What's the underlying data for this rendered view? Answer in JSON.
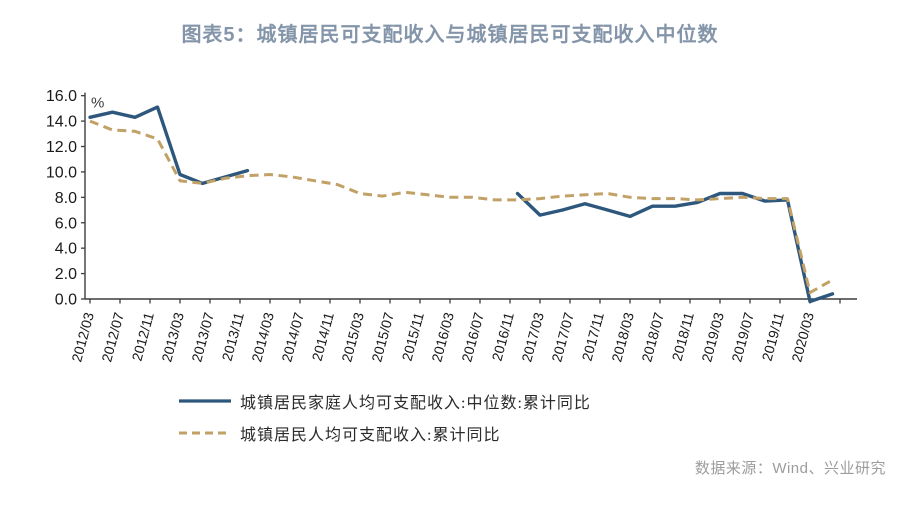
{
  "chart_data": {
    "type": "line",
    "title": "图表5：城镇居民可支配收入与城镇居民可支配收入中位数",
    "title_color": "#8495aa",
    "unit_label": "%",
    "ylim": [
      0,
      16
    ],
    "ytick_step": 2,
    "grid": false,
    "legend_position": "bottom-left",
    "x_labels": [
      "2012/03",
      "2012/07",
      "2012/11",
      "2013/03",
      "2013/07",
      "2013/11",
      "2014/03",
      "2014/07",
      "2014/11",
      "2015/03",
      "2015/07",
      "2015/11",
      "2016/03",
      "2016/07",
      "2016/11",
      "2017/03",
      "2017/07",
      "2017/11",
      "2018/03",
      "2018/07",
      "2018/11",
      "2019/03",
      "2019/07",
      "2019/11",
      "2020/03"
    ],
    "series": [
      {
        "key": "median-income",
        "name": "城镇居民家庭人均可支配收入:中位数:累计同比",
        "color": "#2d577c",
        "line_style": "solid",
        "segments": [
          [
            [
              "2012/03",
              14.3
            ],
            [
              "2012/06",
              14.7
            ],
            [
              "2012/09",
              14.3
            ],
            [
              "2012/12",
              15.1
            ],
            [
              "2013/03",
              9.8
            ],
            [
              "2013/06",
              9.1
            ],
            [
              "2013/09",
              9.6
            ],
            [
              "2013/12",
              10.1
            ]
          ],
          [
            [
              "2016/12",
              8.3
            ],
            [
              "2017/03",
              6.6
            ],
            [
              "2017/06",
              7.0
            ],
            [
              "2017/09",
              7.5
            ],
            [
              "2017/12",
              7.0
            ],
            [
              "2018/03",
              6.5
            ],
            [
              "2018/06",
              7.3
            ],
            [
              "2018/09",
              7.3
            ],
            [
              "2018/12",
              7.6
            ],
            [
              "2019/03",
              8.3
            ],
            [
              "2019/06",
              8.3
            ],
            [
              "2019/09",
              7.7
            ],
            [
              "2019/12",
              7.8
            ],
            [
              "2020/03",
              -0.2
            ],
            [
              "2020/06",
              0.4
            ]
          ]
        ]
      },
      {
        "key": "per-capita-income",
        "name": "城镇居民人均可支配收入:累计同比",
        "color": "#c2a167",
        "line_style": "dashed",
        "segments": [
          [
            [
              "2012/03",
              14.0
            ],
            [
              "2012/06",
              13.3
            ],
            [
              "2012/09",
              13.2
            ],
            [
              "2012/12",
              12.6
            ],
            [
              "2013/03",
              9.3
            ],
            [
              "2013/06",
              9.1
            ],
            [
              "2013/09",
              9.5
            ],
            [
              "2013/12",
              9.7
            ],
            [
              "2014/03",
              9.8
            ],
            [
              "2014/06",
              9.6
            ],
            [
              "2014/09",
              9.3
            ],
            [
              "2014/12",
              9.0
            ],
            [
              "2015/03",
              8.3
            ],
            [
              "2015/06",
              8.1
            ],
            [
              "2015/09",
              8.4
            ],
            [
              "2015/12",
              8.2
            ],
            [
              "2016/03",
              8.0
            ],
            [
              "2016/06",
              8.0
            ],
            [
              "2016/09",
              7.8
            ],
            [
              "2016/12",
              7.8
            ],
            [
              "2017/03",
              7.9
            ],
            [
              "2017/06",
              8.1
            ],
            [
              "2017/09",
              8.2
            ],
            [
              "2017/12",
              8.3
            ],
            [
              "2018/03",
              8.0
            ],
            [
              "2018/06",
              7.9
            ],
            [
              "2018/09",
              7.9
            ],
            [
              "2018/12",
              7.8
            ],
            [
              "2019/03",
              7.9
            ],
            [
              "2019/06",
              8.0
            ],
            [
              "2019/09",
              7.9
            ],
            [
              "2019/12",
              7.9
            ],
            [
              "2020/03",
              0.5
            ],
            [
              "2020/06",
              1.5
            ]
          ]
        ]
      }
    ]
  },
  "source": {
    "text": "数据来源：Wind、兴业研究",
    "color": "#9c9c9c"
  }
}
